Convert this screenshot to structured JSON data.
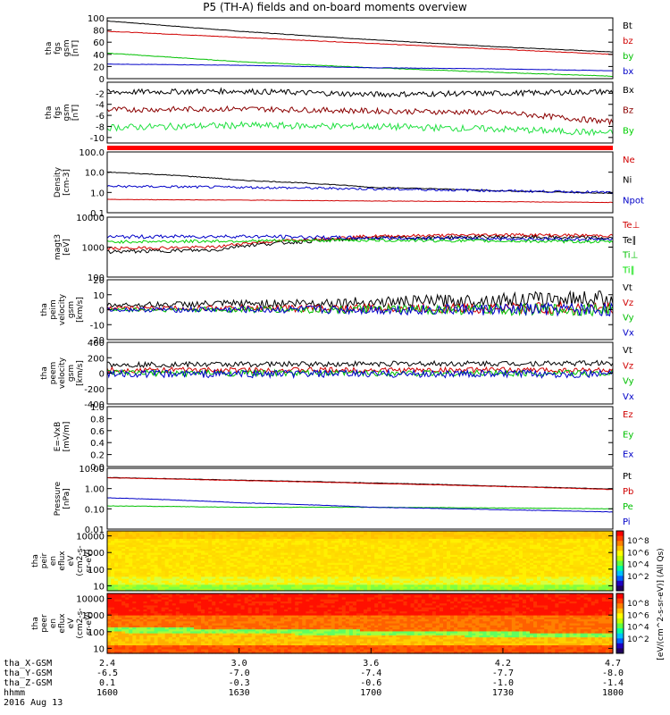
{
  "title": "P5 (TH-A) fields and on-board moments overview",
  "panels": [
    {
      "id": "fgs_gsm",
      "ylabel": [
        "tha",
        "fgs",
        "gsm",
        "[nT]"
      ],
      "ticks": [
        0,
        20,
        40,
        60,
        80,
        100
      ],
      "ylim": [
        0,
        100
      ],
      "legend": [
        {
          "t": "Bt",
          "c": "#000000"
        },
        {
          "t": "bz",
          "c": "#d00000"
        },
        {
          "t": "by",
          "c": "#00c000"
        },
        {
          "t": "bx",
          "c": "#0000c8"
        }
      ],
      "series": [
        {
          "name": "Bt",
          "color": "#000000",
          "x": [
            2.4,
            3.0,
            3.6,
            4.2,
            4.7
          ],
          "y": [
            95,
            78,
            64,
            52,
            44
          ],
          "noise": 0.4
        },
        {
          "name": "bz",
          "color": "#d00000",
          "x": [
            2.4,
            3.0,
            3.6,
            4.2,
            4.7
          ],
          "y": [
            78,
            68,
            58,
            48,
            40
          ],
          "noise": 0.4
        },
        {
          "name": "by",
          "color": "#00c000",
          "x": [
            2.4,
            3.0,
            3.6,
            4.2,
            4.7
          ],
          "y": [
            42,
            28,
            18,
            10,
            4
          ],
          "noise": 0.4
        },
        {
          "name": "bx",
          "color": "#0000c8",
          "x": [
            2.4,
            3.0,
            3.6,
            4.2,
            4.7
          ],
          "y": [
            24,
            22,
            18,
            16,
            13
          ],
          "noise": 0.3
        }
      ]
    },
    {
      "id": "fgs_gsm_detr",
      "ylabel": [
        "tha",
        "fgs",
        "gsm",
        "[nT]"
      ],
      "ticks": [
        -10,
        -8,
        -6,
        -4,
        -2
      ],
      "ylim": [
        -11,
        0
      ],
      "legend": [
        {
          "t": "Bx",
          "c": "#000000"
        },
        {
          "t": "Bz",
          "c": "#8b0000"
        },
        {
          "t": "By",
          "c": "#00d000"
        }
      ],
      "series": [
        {
          "name": "Bx",
          "color": "#000000",
          "x": [
            2.4,
            3.0,
            3.6,
            4.2,
            4.7
          ],
          "y": [
            -1.8,
            -1.6,
            -2.2,
            -2.0,
            -1.7
          ],
          "noise": 0.5
        },
        {
          "name": "Bz",
          "color": "#8b0000",
          "x": [
            2.4,
            3.0,
            3.6,
            4.2,
            4.7
          ],
          "y": [
            -5.0,
            -4.8,
            -5.2,
            -5.5,
            -7.2
          ],
          "noise": 0.5
        },
        {
          "name": "By",
          "color": "#20e040",
          "x": [
            2.4,
            3.0,
            3.6,
            4.2,
            4.7
          ],
          "y": [
            -8.2,
            -7.8,
            -8.0,
            -8.5,
            -9.2
          ],
          "noise": 0.6
        }
      ]
    },
    {
      "id": "density",
      "ylabel": [
        "Density",
        "[cm-3]"
      ],
      "log": true,
      "ticks": [
        0.1,
        1.0,
        10.0,
        100.0
      ],
      "ticklabels": [
        "0.1",
        "1.0",
        "10.0",
        "100.0"
      ],
      "ylim": [
        0.1,
        100
      ],
      "legend": [
        {
          "t": "Ne",
          "c": "#d00000"
        },
        {
          "t": "Ni",
          "c": "#000000"
        },
        {
          "t": "Npot",
          "c": "#0000c8"
        }
      ],
      "series": [
        {
          "name": "Ni",
          "color": "#000000",
          "x": [
            2.4,
            3.0,
            3.6,
            4.2,
            4.7
          ],
          "y": [
            10,
            4,
            1.8,
            1.2,
            0.9
          ],
          "noise": 0.02
        },
        {
          "name": "Npot",
          "color": "#0000c8",
          "x": [
            2.4,
            3.0,
            3.6,
            4.2,
            4.7
          ],
          "y": [
            2.0,
            1.8,
            1.5,
            1.2,
            1.0
          ],
          "noise": 0.06
        },
        {
          "name": "Ne",
          "color": "#d00000",
          "x": [
            2.4,
            3.0,
            3.6,
            4.2,
            4.7
          ],
          "y": [
            0.45,
            0.42,
            0.38,
            0.35,
            0.32
          ],
          "noise": 0.01
        }
      ]
    },
    {
      "id": "temp",
      "ylabel": [
        "magt3",
        "[eV]"
      ],
      "log": true,
      "ticks": [
        100,
        1000,
        10000
      ],
      "ticklabels": [
        "100",
        "1000",
        "10000"
      ],
      "ylim": [
        100,
        10000
      ],
      "legend": [
        {
          "t": "Te⊥",
          "c": "#d00000"
        },
        {
          "t": "Te∥",
          "c": "#000000"
        },
        {
          "t": "Ti⊥",
          "c": "#00c000"
        },
        {
          "t": "Ti∥",
          "c": "#00e000"
        }
      ],
      "series": [
        {
          "name": "Te∥",
          "color": "#000000",
          "x": [
            2.4,
            2.9,
            3.0,
            3.6,
            4.2,
            4.7
          ],
          "y": [
            700,
            800,
            1100,
            2000,
            2200,
            2000
          ],
          "noise": 0.06
        },
        {
          "name": "Te⊥",
          "color": "#d00000",
          "x": [
            2.4,
            2.9,
            3.0,
            3.6,
            4.2,
            4.7
          ],
          "y": [
            900,
            1000,
            1300,
            2300,
            2600,
            2400
          ],
          "noise": 0.05
        },
        {
          "name": "Ti⊥",
          "color": "#0000c8",
          "x": [
            2.4,
            3.0,
            3.6,
            4.2,
            4.7
          ],
          "y": [
            2200,
            2300,
            2000,
            1900,
            1800
          ],
          "noise": 0.06
        },
        {
          "name": "Ti∥",
          "color": "#00d000",
          "x": [
            2.4,
            3.0,
            3.6,
            4.2,
            4.7
          ],
          "y": [
            1500,
            1600,
            1700,
            1600,
            1500
          ],
          "noise": 0.05
        }
      ]
    },
    {
      "id": "peim_vel",
      "ylabel": [
        "tha",
        "peim",
        "velocity",
        "gsm",
        "[km/s]"
      ],
      "ticks": [
        -20,
        -10,
        0,
        10,
        20
      ],
      "ylim": [
        -20,
        20
      ],
      "legend": [
        {
          "t": "Vt",
          "c": "#000000"
        },
        {
          "t": "Vz",
          "c": "#d00000"
        },
        {
          "t": "Vy",
          "c": "#00c000"
        },
        {
          "t": "Vx",
          "c": "#0000c8"
        }
      ],
      "series": [
        {
          "name": "Vt",
          "color": "#000000",
          "x": [
            2.4,
            3.6,
            4.7
          ],
          "y": [
            3,
            5,
            8
          ],
          "noise": 2.5,
          "grow": true
        },
        {
          "name": "Vz",
          "color": "#d00000",
          "x": [
            2.4,
            3.6,
            4.7
          ],
          "y": [
            1,
            1,
            1
          ],
          "noise": 2.0,
          "grow": true
        },
        {
          "name": "Vy",
          "color": "#00c000",
          "x": [
            2.4,
            3.6,
            4.7
          ],
          "y": [
            0,
            0,
            0
          ],
          "noise": 2.0,
          "grow": true
        },
        {
          "name": "Vx",
          "color": "#0000c8",
          "x": [
            2.4,
            3.6,
            4.7
          ],
          "y": [
            0,
            0,
            0
          ],
          "noise": 2.2,
          "grow": true
        }
      ]
    },
    {
      "id": "peem_vel",
      "ylabel": [
        "tha",
        "peem",
        "velocity",
        "gsm",
        "[km/s]"
      ],
      "ticks": [
        -400,
        -200,
        0,
        200,
        400
      ],
      "ylim": [
        -400,
        400
      ],
      "legend": [
        {
          "t": "Vt",
          "c": "#000000"
        },
        {
          "t": "Vz",
          "c": "#d00000"
        },
        {
          "t": "Vy",
          "c": "#00c000"
        },
        {
          "t": "Vx",
          "c": "#0000c8"
        }
      ],
      "series": [
        {
          "name": "Vt",
          "color": "#000000",
          "x": [
            2.4,
            3.6,
            4.7
          ],
          "y": [
            110,
            120,
            130
          ],
          "noise": 35
        },
        {
          "name": "Vz",
          "color": "#d00000",
          "x": [
            2.4,
            3.6,
            4.7
          ],
          "y": [
            40,
            40,
            40
          ],
          "noise": 35
        },
        {
          "name": "Vy",
          "color": "#00c000",
          "x": [
            2.4,
            3.6,
            4.7
          ],
          "y": [
            0,
            0,
            0
          ],
          "noise": 40
        },
        {
          "name": "Vx",
          "color": "#0000c8",
          "x": [
            2.4,
            3.6,
            4.7
          ],
          "y": [
            -10,
            -10,
            -10
          ],
          "noise": 50
        }
      ]
    },
    {
      "id": "efield",
      "ylabel": [
        "E=-VxB",
        "[mV/m]"
      ],
      "ticks": [
        0.0,
        0.2,
        0.4,
        0.6,
        0.8,
        1.0
      ],
      "ticklabels": [
        "0.0",
        "0.2",
        "0.4",
        "0.6",
        "0.8",
        "1.0"
      ],
      "ylim": [
        0,
        1
      ],
      "legend": [
        {
          "t": "Ez",
          "c": "#d00000"
        },
        {
          "t": "Ey",
          "c": "#00c000"
        },
        {
          "t": "Ex",
          "c": "#0000c8"
        }
      ],
      "series": []
    },
    {
      "id": "pressure",
      "ylabel": [
        "Pressure",
        "[nPa]"
      ],
      "log": true,
      "ticks": [
        0.01,
        0.1,
        1.0,
        10.0
      ],
      "ticklabels": [
        "0.01",
        "0.10",
        "1.00",
        "10.00"
      ],
      "ylim": [
        0.01,
        10
      ],
      "legend": [
        {
          "t": "Pt",
          "c": "#000000"
        },
        {
          "t": "Pb",
          "c": "#d00000"
        },
        {
          "t": "Pe",
          "c": "#00c000"
        },
        {
          "t": "Pi",
          "c": "#0000c8"
        }
      ],
      "series": [
        {
          "name": "Pt",
          "color": "#000000",
          "x": [
            2.4,
            3.0,
            3.6,
            4.2,
            4.7
          ],
          "y": [
            3.5,
            2.6,
            1.9,
            1.3,
            0.95
          ],
          "noise": 0.01
        },
        {
          "name": "Pb",
          "color": "#d00000",
          "x": [
            2.4,
            3.0,
            3.6,
            4.2,
            4.7
          ],
          "y": [
            3.4,
            2.5,
            1.8,
            1.25,
            0.9
          ],
          "noise": 0.01
        },
        {
          "name": "Pe",
          "color": "#00c000",
          "x": [
            2.4,
            3.0,
            3.6,
            4.2,
            4.7
          ],
          "y": [
            0.14,
            0.12,
            0.12,
            0.11,
            0.1
          ],
          "noise": 0.01
        },
        {
          "name": "Pi",
          "color": "#0000c8",
          "x": [
            2.4,
            3.0,
            3.6,
            4.2,
            4.7
          ],
          "y": [
            0.35,
            0.2,
            0.12,
            0.09,
            0.07
          ],
          "noise": 0.01
        }
      ]
    },
    {
      "id": "peir_spec",
      "ylabel": [
        "tha",
        "peir",
        "en",
        "eflux",
        "eV",
        "(cm2-s-",
        "sr-eV)"
      ],
      "log": true,
      "spectrogram": "ion",
      "ticks": [
        10,
        100,
        1000,
        10000
      ],
      "ticklabels": [
        "10",
        "100",
        "1000",
        "10000"
      ],
      "ylim": [
        5,
        20000
      ]
    },
    {
      "id": "peer_spec",
      "ylabel": [
        "tha",
        "peer",
        "en",
        "eflux",
        "eV",
        "(cm2-s-",
        "sr-eV)"
      ],
      "log": true,
      "spectrogram": "electron",
      "ticks": [
        10,
        100,
        1000,
        10000
      ],
      "ticklabels": [
        "10",
        "100",
        "1000",
        "10000"
      ],
      "ylim": [
        5,
        20000
      ]
    }
  ],
  "colorbar": {
    "labels": [
      "10^8",
      "10^6",
      "10^4",
      "10^2"
    ],
    "unit": "[eV/(cm^2-s-sr-eV)] (All Qs)"
  },
  "xaxis": {
    "ticks": [
      2.4,
      3.0,
      3.6,
      4.2,
      4.7
    ],
    "rows": [
      {
        "name": "tha_X-GSM",
        "vals": [
          "2.4",
          "3.0",
          "3.6",
          "4.2",
          "4.7"
        ]
      },
      {
        "name": "tha_Y-GSM",
        "vals": [
          "-6.5",
          "-7.0",
          "-7.4",
          "-7.7",
          "-8.0"
        ]
      },
      {
        "name": "tha_Z-GSM",
        "vals": [
          "0.1",
          "-0.3",
          "-0.6",
          "-1.0",
          "-1.4"
        ]
      },
      {
        "name": "hhmm",
        "vals": [
          "1600",
          "1630",
          "1700",
          "1730",
          "1800"
        ]
      }
    ],
    "date": "2016 Aug 13"
  }
}
